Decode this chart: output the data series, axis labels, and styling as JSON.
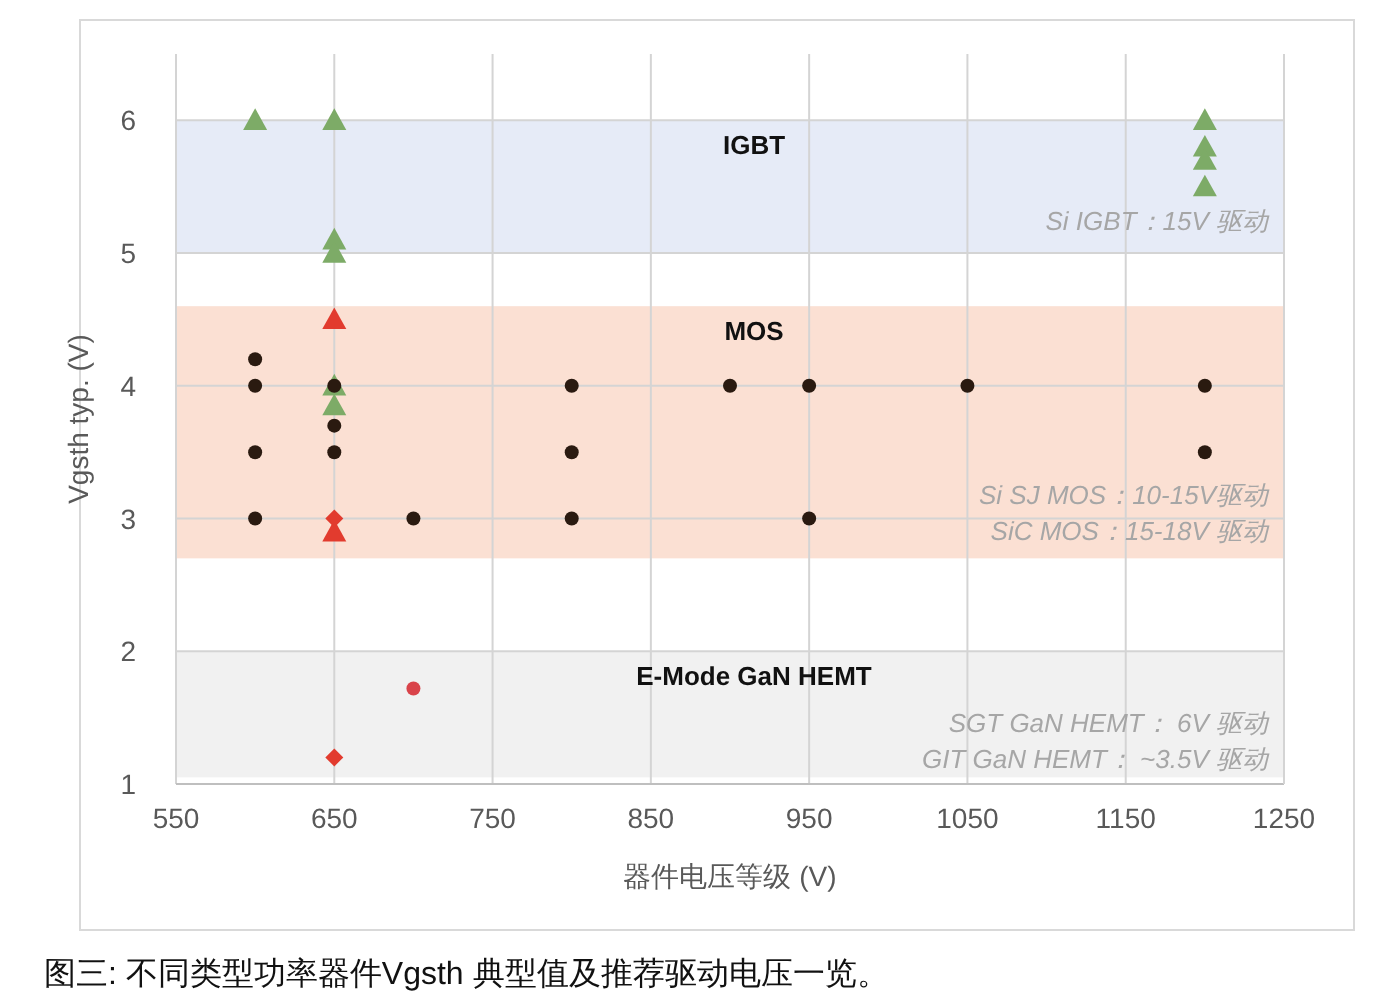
{
  "chart_data": {
    "type": "scatter",
    "xlabel": "器件电压等级 (V)",
    "ylabel": "Vgsth typ. (V)",
    "xlim": [
      550,
      1250
    ],
    "xticks": [
      550,
      650,
      750,
      850,
      950,
      1050,
      1150,
      1250
    ],
    "ylim": [
      1,
      6.5
    ],
    "yticks": [
      1,
      2,
      3,
      4,
      5,
      6
    ],
    "grid": true,
    "bands": [
      {
        "axis": "y",
        "from": 5,
        "to": 6,
        "label": "IGBT",
        "color": "#e6ebf7"
      },
      {
        "axis": "y",
        "from": 2.7,
        "to": 4.6,
        "label": "MOS",
        "color": "#fbe0d3"
      },
      {
        "axis": "y",
        "from": 1.05,
        "to": 2,
        "label": "E-Mode GaN HEMT",
        "color": "#f1f1f1"
      }
    ],
    "series": [
      {
        "marker": "triangle",
        "color": "#7dab67",
        "x": [
          600,
          650,
          650,
          650,
          1200,
          1200,
          1200,
          1200,
          650,
          650
        ],
        "values": [
          6,
          6,
          5.1,
          5,
          6,
          5.8,
          5.7,
          5.5,
          4,
          3.85
        ]
      },
      {
        "marker": "circle",
        "color": "#2a1a10",
        "x": [
          600,
          600,
          600,
          600,
          650,
          650,
          650,
          700,
          800,
          800,
          800,
          900,
          950,
          950,
          1050,
          1200,
          1200
        ],
        "values": [
          4.2,
          4,
          3.5,
          3,
          4,
          3.7,
          3.5,
          3,
          4,
          3.5,
          3,
          4,
          4,
          3,
          4,
          4,
          3.5
        ]
      },
      {
        "marker": "triangle",
        "color": "#e23b2e",
        "x": [
          650,
          650
        ],
        "values": [
          4.5,
          2.9
        ]
      },
      {
        "marker": "diamond",
        "color": "#e23b2e",
        "x": [
          650,
          650
        ],
        "values": [
          3,
          1.2
        ]
      },
      {
        "marker": "circle",
        "color": "#d9434a",
        "x": [
          700
        ],
        "values": [
          1.72
        ]
      }
    ],
    "annotations": [
      "Si IGBT：15V 驱动",
      "Si SJ MOS：10-15V驱动",
      "SiC MOS：15-18V 驱动",
      "SGT GaN HEMT：      6V 驱动",
      "GIT GaN  HEMT：  ~3.5V 驱动",
      "图三: 不同类型功率器件Vgsth 典型值及推荐驱动电压一览。"
    ]
  }
}
